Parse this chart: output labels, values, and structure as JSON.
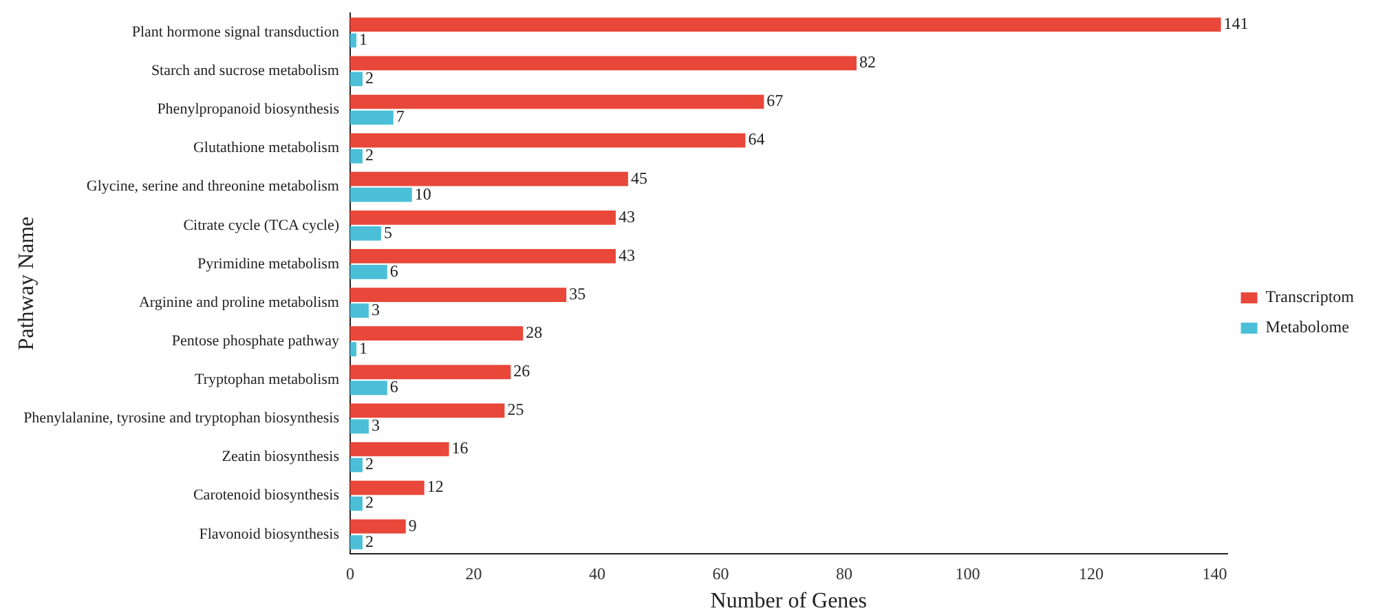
{
  "chart_data": {
    "type": "bar",
    "orientation": "horizontal",
    "xlabel": "Number of Genes",
    "ylabel": "Pathway Name",
    "categories": [
      "Plant hormone signal transduction",
      "Starch and sucrose metabolism",
      "Phenylpropanoid biosynthesis",
      "Glutathione metabolism",
      "Glycine, serine and threonine metabolism",
      "Citrate cycle (TCA cycle)",
      "Pyrimidine metabolism",
      "Arginine and proline metabolism",
      "Pentose phosphate pathway",
      "Tryptophan metabolism",
      "Phenylalanine, tyrosine and tryptophan biosynthesis",
      "Zeatin biosynthesis",
      "Carotenoid biosynthesis",
      "Flavonoid biosynthesis"
    ],
    "series": [
      {
        "name": "Transcriptom",
        "color": "#e8473a",
        "values": [
          141,
          82,
          67,
          64,
          45,
          43,
          43,
          35,
          28,
          26,
          25,
          16,
          12,
          9
        ]
      },
      {
        "name": "Metabolome",
        "color": "#4bbfd8",
        "values": [
          1,
          2,
          7,
          2,
          10,
          5,
          6,
          3,
          1,
          6,
          3,
          2,
          2,
          2
        ]
      }
    ],
    "xlim": [
      0,
      142
    ],
    "xticks": [
      0,
      20,
      40,
      60,
      80,
      100,
      120,
      140
    ],
    "grid": false,
    "legend": "right",
    "data_labels": true
  }
}
